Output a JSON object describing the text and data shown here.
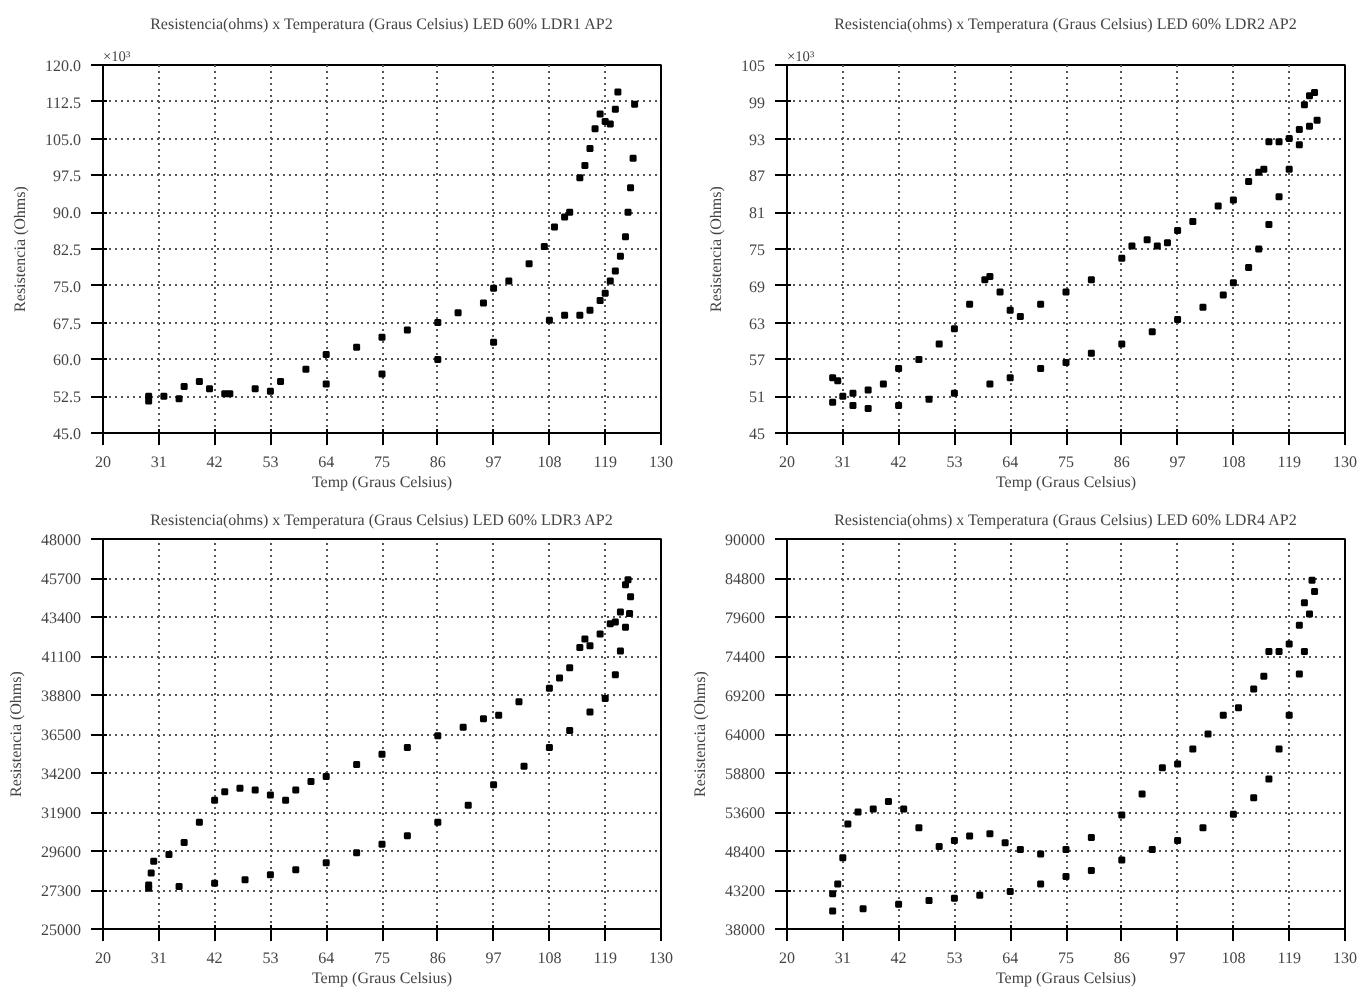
{
  "chart_data": [
    {
      "type": "scatter",
      "title": "Resistencia(ohms) x Temperatura (Graus Celsius) LED 60% LDR1 AP2",
      "xlabel": "Temp (Graus Celsius)",
      "ylabel": "Resistencia (Ohms)",
      "annotations": [
        "×10³"
      ],
      "grid": true,
      "marker": "square",
      "xlim": [
        20,
        130
      ],
      "xticks": [
        20,
        31,
        42,
        53,
        64,
        75,
        86,
        97,
        108,
        119,
        130
      ],
      "ylim": [
        45,
        120
      ],
      "yticks": [
        {
          "value": 45,
          "label": "45.0"
        },
        52.5,
        {
          "value": 60,
          "label": "60.0"
        },
        67.5,
        {
          "value": 75,
          "label": "75.0"
        },
        82.5,
        {
          "value": 90,
          "label": "90.0"
        },
        97.5,
        {
          "value": 105,
          "label": "105.0"
        },
        112.5,
        {
          "value": 120,
          "label": "120.0"
        }
      ],
      "series": [
        {
          "color": "#000000",
          "x": [
            29,
            32,
            36,
            39,
            41,
            44,
            50,
            55,
            60,
            64,
            70,
            75,
            80,
            86,
            90,
            95,
            97,
            100,
            104,
            107,
            109,
            111,
            112,
            114,
            115,
            116,
            117,
            118,
            119,
            120,
            121,
            121.5
          ],
          "values": [
            52.5,
            52.5,
            54.5,
            55.5,
            54,
            53,
            54,
            55.5,
            58,
            61,
            62.5,
            64.5,
            66,
            67.5,
            69.5,
            71.5,
            74.5,
            76,
            79.5,
            83,
            87,
            89,
            90,
            97,
            99.5,
            103,
            107,
            110,
            108.5,
            108,
            111,
            114.5
          ]
        },
        {
          "color": "#000000",
          "x": [
            29,
            35,
            45,
            53,
            64,
            75,
            86,
            97,
            108,
            111,
            114,
            116,
            118,
            119,
            120,
            121,
            122,
            123,
            123.5,
            124,
            124.5,
            124.8
          ],
          "values": [
            51.5,
            52,
            53,
            53.5,
            55,
            57,
            60,
            63.5,
            68,
            69,
            69,
            70,
            72,
            73.5,
            76,
            78,
            81,
            85,
            90,
            95,
            101,
            112
          ]
        }
      ]
    },
    {
      "type": "scatter",
      "title": "Resistencia(ohms) x Temperatura (Graus Celsius) LED 60% LDR2 AP2",
      "xlabel": "Temp (Graus Celsius)",
      "ylabel": "Resistencia (Ohms)",
      "annotations": [
        "×10³"
      ],
      "grid": true,
      "marker": "square",
      "xlim": [
        20,
        130
      ],
      "xticks": [
        20,
        31,
        42,
        53,
        64,
        75,
        86,
        97,
        108,
        119,
        130
      ],
      "ylim": [
        45,
        105
      ],
      "yticks": [
        45,
        51,
        57,
        63,
        69,
        75,
        81,
        87,
        93,
        99,
        105
      ],
      "series": [
        {
          "color": "#000000",
          "x": [
            29,
            30,
            31,
            33,
            36,
            39,
            42,
            46,
            50,
            53,
            56,
            59,
            60,
            62,
            64,
            66,
            70,
            75,
            80,
            86,
            88,
            91,
            93,
            95,
            97,
            100,
            105,
            108,
            111,
            113,
            114,
            115,
            117,
            119,
            121,
            122,
            123,
            124,
            124.5
          ],
          "values": [
            54,
            53.5,
            51,
            51.5,
            52,
            53,
            55.5,
            57,
            59.5,
            62,
            66,
            70,
            70.5,
            68,
            65,
            64,
            66,
            68,
            70,
            73.5,
            75.5,
            76.5,
            75.5,
            76,
            78,
            79.5,
            82,
            83,
            86,
            87.5,
            88,
            92.5,
            92.5,
            93,
            94.5,
            98.5,
            100,
            100.5,
            96
          ]
        },
        {
          "color": "#000000",
          "x": [
            29,
            33,
            36,
            42,
            48,
            53,
            60,
            64,
            70,
            75,
            80,
            86,
            92,
            97,
            102,
            106,
            108,
            111,
            113,
            115,
            117,
            119,
            121,
            123
          ],
          "values": [
            50,
            49.5,
            49,
            49.5,
            50.5,
            51.5,
            53,
            54,
            55.5,
            56.5,
            58,
            59.5,
            61.5,
            63.5,
            65.5,
            67.5,
            69.5,
            72,
            75,
            79,
            83.5,
            88,
            92,
            95
          ]
        }
      ]
    },
    {
      "type": "scatter",
      "title": "Resistencia(ohms) x Temperatura (Graus Celsius) LED 60% LDR3 AP2",
      "xlabel": "Temp (Graus Celsius)",
      "ylabel": "Resistencia (Ohms)",
      "grid": true,
      "marker": "square",
      "xlim": [
        20,
        130
      ],
      "xticks": [
        20,
        31,
        42,
        53,
        64,
        75,
        86,
        97,
        108,
        119,
        130
      ],
      "ylim": [
        25000,
        48000
      ],
      "yticks": [
        25000,
        27300,
        29600,
        31900,
        34200,
        36500,
        38800,
        41100,
        43400,
        45700,
        48000
      ],
      "series": [
        {
          "color": "#000000",
          "x": [
            29,
            29.5,
            30,
            33,
            36,
            39,
            42,
            44,
            47,
            50,
            53,
            56,
            58,
            61,
            64,
            70,
            75,
            80,
            86,
            91,
            95,
            98,
            102,
            108,
            110,
            112,
            114,
            115,
            116,
            118,
            120,
            121,
            122,
            123,
            123.5
          ],
          "values": [
            27600,
            28300,
            29000,
            29400,
            30100,
            31300,
            32600,
            33100,
            33300,
            33200,
            32900,
            32600,
            33200,
            33700,
            34000,
            34700,
            35300,
            35700,
            36400,
            36900,
            37400,
            37600,
            38400,
            39200,
            39800,
            40400,
            41600,
            42100,
            41700,
            42400,
            43000,
            43100,
            43700,
            45300,
            45600
          ]
        },
        {
          "color": "#000000",
          "x": [
            29,
            35,
            42,
            48,
            53,
            58,
            64,
            70,
            75,
            80,
            86,
            92,
            97,
            103,
            108,
            112,
            116,
            119,
            121,
            122,
            123,
            123.8,
            124
          ],
          "values": [
            27400,
            27500,
            27700,
            27900,
            28200,
            28500,
            28900,
            29500,
            30000,
            30500,
            31300,
            32300,
            33500,
            34600,
            35700,
            36700,
            37800,
            38600,
            40000,
            41400,
            42800,
            43600,
            44600
          ]
        }
      ]
    },
    {
      "type": "scatter",
      "title": "Resistencia(ohms) x Temperatura (Graus Celsius) LED 60% LDR4 AP2",
      "xlabel": "Temp (Graus Celsius)",
      "ylabel": "Resistencia (Ohms)",
      "grid": true,
      "marker": "square",
      "xlim": [
        20,
        130
      ],
      "xticks": [
        20,
        31,
        42,
        53,
        64,
        75,
        86,
        97,
        108,
        119,
        130
      ],
      "ylim": [
        38000,
        90000
      ],
      "yticks": [
        38000,
        43200,
        48400,
        53600,
        58800,
        64000,
        69200,
        74400,
        79600,
        84800,
        90000
      ],
      "series": [
        {
          "color": "#000000",
          "x": [
            29,
            30,
            31,
            32,
            34,
            37,
            40,
            43,
            46,
            50,
            53,
            56,
            60,
            63,
            66,
            70,
            75,
            80,
            86,
            90,
            94,
            97,
            100,
            103,
            106,
            109,
            112,
            114,
            115,
            117,
            119,
            121,
            122,
            123.5,
            124
          ],
          "values": [
            42700,
            44000,
            47500,
            52000,
            53600,
            54000,
            55000,
            54000,
            51500,
            49000,
            49800,
            50400,
            50700,
            49500,
            48600,
            48000,
            48600,
            50200,
            53200,
            56000,
            59500,
            60000,
            62000,
            64000,
            66500,
            67500,
            70000,
            71700,
            75000,
            75000,
            76000,
            78500,
            81500,
            84500,
            83000
          ]
        },
        {
          "color": "#000000",
          "x": [
            29,
            35,
            42,
            48,
            53,
            58,
            64,
            70,
            75,
            80,
            86,
            92,
            97,
            102,
            108,
            112,
            115,
            117,
            119,
            121,
            122,
            123
          ],
          "values": [
            40400,
            40700,
            41300,
            41800,
            42100,
            42500,
            43000,
            44000,
            45000,
            45800,
            47200,
            48600,
            49800,
            51500,
            53300,
            55500,
            58000,
            62000,
            66500,
            72000,
            75000,
            80000
          ]
        }
      ]
    }
  ]
}
